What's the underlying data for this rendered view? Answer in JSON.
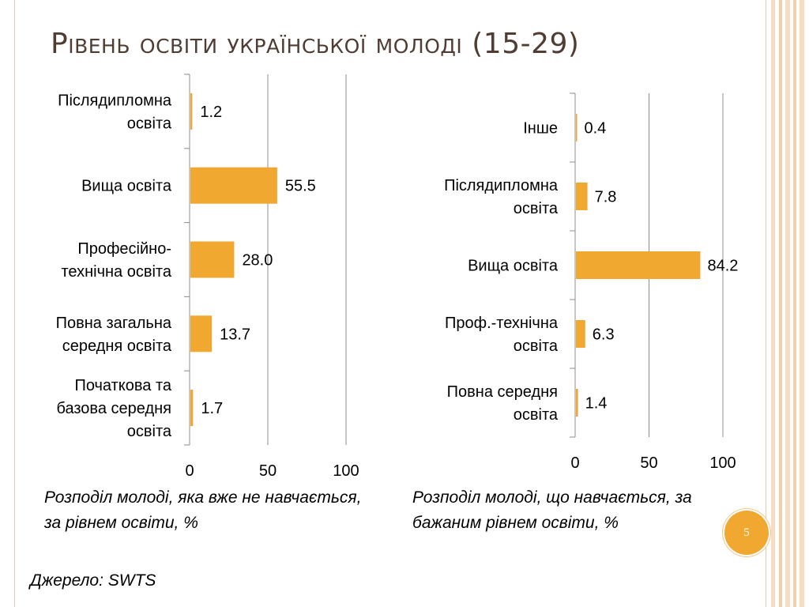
{
  "title": "Рівень освіти української молоді (15-29)",
  "colors": {
    "bar": "#f0a830",
    "title": "#4f3c33",
    "accent": "#e8c9a9"
  },
  "chart_data": [
    {
      "type": "bar",
      "orientation": "horizontal",
      "categories": [
        "Післядипломна освіта",
        "Вища освіта",
        "Професійно-технічна освіта",
        "Повна загальна середня освіта",
        "Початкова та базова середня освіта"
      ],
      "values": [
        1.2,
        55.5,
        28.0,
        13.7,
        1.7
      ],
      "value_labels": [
        "1.2",
        "55.5",
        "28.0",
        "13.7",
        "1.7"
      ],
      "xticks": [
        "0",
        "50",
        "100"
      ],
      "xlim": [
        0,
        100
      ],
      "grid": true
    },
    {
      "type": "bar",
      "orientation": "horizontal",
      "categories": [
        "Інше",
        "Післядипломна освіта",
        "Вища освіта",
        "Проф.-технічна освіта",
        "Повна середня освіта"
      ],
      "values": [
        0.4,
        7.8,
        84.2,
        6.3,
        1.4
      ],
      "value_labels": [
        "0.4",
        "7.8",
        "84.2",
        "6.3",
        "1.4"
      ],
      "xticks": [
        "0",
        "50",
        "100"
      ],
      "xlim": [
        0,
        100
      ],
      "grid": true
    }
  ],
  "captions": {
    "left": "Розподіл молоді, яка вже не навчається, за рівнем освіти, %",
    "right": "Розподіл молоді, що навчається, за бажаним рівнем освіти, %"
  },
  "source": "Джерело: SWTS",
  "page_number": "5"
}
